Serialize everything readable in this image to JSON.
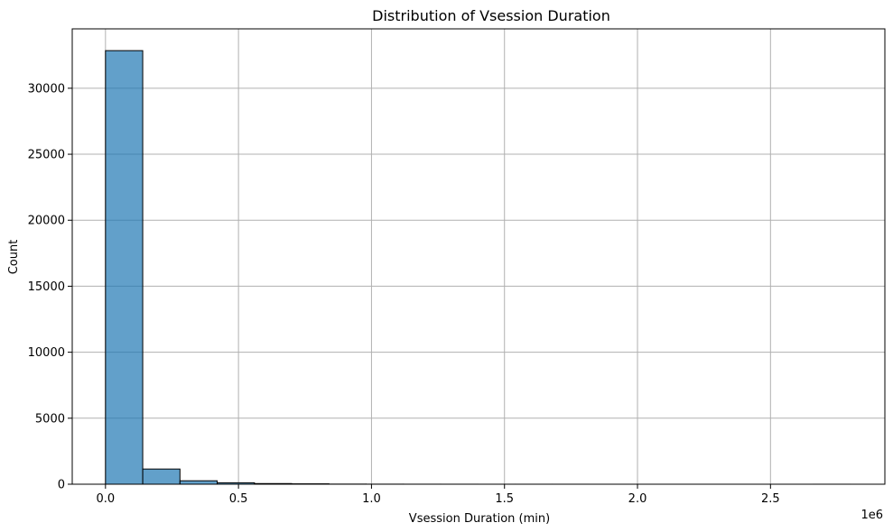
{
  "chart_data": {
    "type": "bar",
    "title": "Distribution of Vsession Duration",
    "xlabel": "Vsession Duration (min)",
    "ylabel": "Count",
    "x_offset_label": "1e6",
    "xlim": [
      -0.125,
      2.93
    ],
    "ylim": [
      0,
      34500
    ],
    "x_ticks": [
      0.0,
      0.5,
      1.0,
      1.5,
      2.0,
      2.5
    ],
    "x_tick_labels": [
      "0.0",
      "0.5",
      "1.0",
      "1.5",
      "2.0",
      "2.5"
    ],
    "y_ticks": [
      0,
      5000,
      10000,
      15000,
      20000,
      25000,
      30000
    ],
    "y_tick_labels": [
      "0",
      "5000",
      "10000",
      "15000",
      "20000",
      "25000",
      "30000"
    ],
    "grid": true,
    "bar_color": "#1f77b4",
    "bin_edges": [
      0.0,
      0.14,
      0.28,
      0.42,
      0.56,
      0.7,
      0.84,
      0.98,
      1.12,
      1.26,
      1.4,
      1.54,
      1.68,
      1.82,
      1.96,
      2.1,
      2.24,
      2.38,
      2.52,
      2.66,
      2.8
    ],
    "values": [
      32850,
      1150,
      260,
      110,
      50,
      30,
      10,
      5,
      3,
      2,
      1,
      1,
      1,
      0,
      0,
      0,
      0,
      0,
      0,
      1
    ]
  }
}
